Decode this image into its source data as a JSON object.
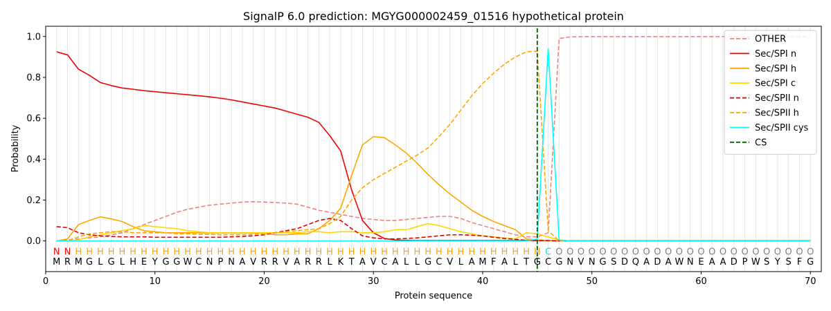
{
  "chart_data": {
    "type": "line",
    "title": "SignalP 6.0 prediction: MGYG000002459_01516 hypothetical protein",
    "xlabel": "Protein sequence",
    "ylabel": "Probability",
    "xlim": [
      0,
      71
    ],
    "ylim": [
      -0.15,
      1.05
    ],
    "xticks": [
      0,
      10,
      20,
      30,
      40,
      50,
      60,
      70
    ],
    "yticks": [
      0.0,
      0.2,
      0.4,
      0.6,
      0.8,
      1.0
    ],
    "ytick_labels": [
      "0.0",
      "0.2",
      "0.4",
      "0.6",
      "0.8",
      "1.0"
    ],
    "grid": "vertical lines at each residue",
    "legend_position": "top-right",
    "sequence": [
      "M",
      "R",
      "M",
      "G",
      "L",
      "G",
      "L",
      "H",
      "E",
      "Y",
      "G",
      "G",
      "W",
      "C",
      "N",
      "P",
      "N",
      "A",
      "V",
      "R",
      "R",
      "V",
      "A",
      "R",
      "R",
      "L",
      "K",
      "T",
      "A",
      "V",
      "C",
      "A",
      "L",
      "L",
      "G",
      "C",
      "V",
      "L",
      "A",
      "M",
      "F",
      "A",
      "L",
      "T",
      "G",
      "C",
      "G",
      "N",
      "V",
      "N",
      "G",
      "S",
      "D",
      "Q",
      "A",
      "D",
      "A",
      "W",
      "N",
      "E",
      "A",
      "A",
      "D",
      "P",
      "W",
      "S",
      "Y",
      "S",
      "F",
      "G"
    ],
    "annotations": [
      "N",
      "N",
      "H",
      "H",
      "H",
      "H",
      "H",
      "H",
      "H",
      "H",
      "H",
      "H",
      "H",
      "H",
      "H",
      "H",
      "H",
      "H",
      "H",
      "H",
      "H",
      "H",
      "H",
      "H",
      "H",
      "H",
      "H",
      "H",
      "H",
      "H",
      "H",
      "H",
      "H",
      "H",
      "H",
      "H",
      "H",
      "H",
      "H",
      "H",
      "H",
      "H",
      "H",
      "H",
      "H",
      "C",
      "O",
      "O",
      "O",
      "O",
      "O",
      "O",
      "O",
      "O",
      "O",
      "O",
      "O",
      "O",
      "O",
      "O",
      "O",
      "O",
      "O",
      "O",
      "O",
      "O",
      "O",
      "O",
      "O",
      "O"
    ],
    "annotation_colors": {
      "N": "#ff0000",
      "H": "#ffa500",
      "C": "#00e5e5",
      "O": "#808080"
    },
    "cs_position": 45,
    "series": [
      {
        "name": "OTHER",
        "color": "#f08080",
        "dash": "dashed",
        "values": [
          0.0,
          0.005,
          0.01,
          0.015,
          0.02,
          0.03,
          0.04,
          0.06,
          0.08,
          0.1,
          0.12,
          0.14,
          0.155,
          0.165,
          0.175,
          0.18,
          0.185,
          0.19,
          0.192,
          0.19,
          0.188,
          0.185,
          0.18,
          0.165,
          0.15,
          0.14,
          0.13,
          0.12,
          0.11,
          0.105,
          0.1,
          0.1,
          0.105,
          0.11,
          0.115,
          0.12,
          0.12,
          0.11,
          0.09,
          0.075,
          0.06,
          0.045,
          0.03,
          0.02,
          0.02,
          0.04,
          0.99,
          0.998,
          0.999,
          0.999,
          0.999,
          0.999,
          0.999,
          0.999,
          0.999,
          0.999,
          0.999,
          0.999,
          0.999,
          0.999,
          0.999,
          0.999,
          0.999,
          0.999,
          0.999,
          0.999,
          0.999,
          0.999,
          0.999,
          0.999
        ]
      },
      {
        "name": "Sec/SPI n",
        "color": "#ee0000",
        "dash": "solid",
        "values": [
          0.925,
          0.91,
          0.84,
          0.81,
          0.775,
          0.76,
          0.748,
          0.742,
          0.735,
          0.73,
          0.725,
          0.72,
          0.715,
          0.71,
          0.705,
          0.698,
          0.69,
          0.68,
          0.67,
          0.66,
          0.65,
          0.635,
          0.62,
          0.605,
          0.58,
          0.515,
          0.44,
          0.25,
          0.1,
          0.04,
          0.012,
          0.005,
          0.003,
          0.002,
          0.002,
          0.002,
          0.002,
          0.002,
          0.002,
          0.002,
          0.002,
          0.002,
          0.002,
          0.002,
          0.002,
          0.002,
          0.001,
          0.001,
          0.001,
          0.001,
          0.001,
          0.001,
          0.001,
          0.001,
          0.001,
          0.001,
          0.001,
          0.001,
          0.001,
          0.001,
          0.001,
          0.001,
          0.001,
          0.001,
          0.001,
          0.001,
          0.001,
          0.001,
          0.001,
          0.001
        ]
      },
      {
        "name": "Sec/SPI h",
        "color": "#ffa500",
        "dash": "solid",
        "values": [
          0.0,
          0.01,
          0.08,
          0.1,
          0.118,
          0.108,
          0.095,
          0.07,
          0.05,
          0.045,
          0.04,
          0.04,
          0.04,
          0.04,
          0.038,
          0.038,
          0.038,
          0.038,
          0.038,
          0.038,
          0.03,
          0.03,
          0.035,
          0.035,
          0.06,
          0.1,
          0.16,
          0.32,
          0.47,
          0.51,
          0.505,
          0.47,
          0.43,
          0.38,
          0.325,
          0.275,
          0.23,
          0.19,
          0.15,
          0.12,
          0.095,
          0.075,
          0.055,
          0.01,
          0.005,
          0.003,
          0.0,
          0.0,
          0.0,
          0.0,
          0.0,
          0.0,
          0.0,
          0.0,
          0.0,
          0.0,
          0.0,
          0.0,
          0.0,
          0.0,
          0.0,
          0.0,
          0.0,
          0.0,
          0.0,
          0.0,
          0.0,
          0.0,
          0.0,
          0.0
        ]
      },
      {
        "name": "Sec/SPI c",
        "color": "#ffd700",
        "dash": "solid",
        "values": [
          0.0,
          0.0,
          0.005,
          0.02,
          0.03,
          0.04,
          0.05,
          0.06,
          0.075,
          0.07,
          0.065,
          0.06,
          0.05,
          0.045,
          0.04,
          0.04,
          0.04,
          0.04,
          0.04,
          0.04,
          0.04,
          0.04,
          0.04,
          0.045,
          0.045,
          0.04,
          0.045,
          0.045,
          0.04,
          0.04,
          0.045,
          0.055,
          0.055,
          0.07,
          0.085,
          0.075,
          0.06,
          0.045,
          0.035,
          0.025,
          0.02,
          0.015,
          0.01,
          0.04,
          0.035,
          0.02,
          0.005,
          0.0,
          0.0,
          0.0,
          0.0,
          0.0,
          0.0,
          0.0,
          0.0,
          0.0,
          0.0,
          0.0,
          0.0,
          0.0,
          0.0,
          0.0,
          0.0,
          0.0,
          0.0,
          0.0,
          0.0,
          0.0,
          0.0,
          0.0
        ]
      },
      {
        "name": "Sec/SPII n",
        "color": "#dd0000",
        "dash": "dashed",
        "values": [
          0.07,
          0.065,
          0.04,
          0.03,
          0.025,
          0.022,
          0.02,
          0.02,
          0.02,
          0.018,
          0.018,
          0.018,
          0.018,
          0.018,
          0.018,
          0.018,
          0.02,
          0.022,
          0.025,
          0.03,
          0.04,
          0.05,
          0.06,
          0.08,
          0.1,
          0.11,
          0.1,
          0.06,
          0.025,
          0.015,
          0.01,
          0.01,
          0.012,
          0.015,
          0.02,
          0.025,
          0.03,
          0.03,
          0.028,
          0.025,
          0.018,
          0.012,
          0.008,
          0.003,
          0.002,
          0.001,
          0.0,
          0.0,
          0.0,
          0.0,
          0.0,
          0.0,
          0.0,
          0.0,
          0.0,
          0.0,
          0.0,
          0.0,
          0.0,
          0.0,
          0.0,
          0.0,
          0.0,
          0.0,
          0.0,
          0.0,
          0.0,
          0.0,
          0.0,
          0.0
        ]
      },
      {
        "name": "Sec/SPII h",
        "color": "#ffa500",
        "dash": "dashed",
        "values": [
          0.0,
          0.0,
          0.02,
          0.035,
          0.04,
          0.045,
          0.045,
          0.04,
          0.04,
          0.04,
          0.04,
          0.035,
          0.035,
          0.032,
          0.032,
          0.03,
          0.03,
          0.03,
          0.032,
          0.035,
          0.04,
          0.045,
          0.05,
          0.055,
          0.06,
          0.085,
          0.12,
          0.2,
          0.26,
          0.3,
          0.33,
          0.36,
          0.39,
          0.42,
          0.455,
          0.51,
          0.57,
          0.64,
          0.71,
          0.77,
          0.82,
          0.865,
          0.9,
          0.925,
          0.928,
          0.05,
          0.0,
          0.0,
          0.0,
          0.0,
          0.0,
          0.0,
          0.0,
          0.0,
          0.0,
          0.0,
          0.0,
          0.0,
          0.0,
          0.0,
          0.0,
          0.0,
          0.0,
          0.0,
          0.0,
          0.0,
          0.0,
          0.0,
          0.0,
          0.0
        ]
      },
      {
        "name": "Sec/SPII cys",
        "color": "#00ffff",
        "dash": "solid",
        "values": [
          0.0,
          0.0,
          0.0,
          0.0,
          0.0,
          0.0,
          0.0,
          0.0,
          0.0,
          0.0,
          0.0,
          0.0,
          0.0,
          0.0,
          0.0,
          0.0,
          0.0,
          0.0,
          0.0,
          0.0,
          0.0,
          0.0,
          0.0,
          0.0,
          0.0,
          0.0,
          0.0,
          0.0,
          0.0,
          0.0,
          0.0,
          0.0,
          0.0,
          0.0,
          0.0,
          0.0,
          0.0,
          0.0,
          0.0,
          0.0,
          0.0,
          0.0,
          0.0,
          0.0,
          0.01,
          0.94,
          0.005,
          0.0,
          0.0,
          0.0,
          0.0,
          0.0,
          0.0,
          0.0,
          0.0,
          0.0,
          0.0,
          0.0,
          0.0,
          0.0,
          0.0,
          0.0,
          0.0,
          0.0,
          0.0,
          0.0,
          0.0,
          0.0,
          0.0,
          0.0
        ]
      }
    ],
    "legend": [
      {
        "name": "OTHER",
        "color": "#f08080",
        "dash": "dashed"
      },
      {
        "name": "Sec/SPI n",
        "color": "#ee0000",
        "dash": "solid"
      },
      {
        "name": "Sec/SPI h",
        "color": "#ffa500",
        "dash": "solid"
      },
      {
        "name": "Sec/SPI c",
        "color": "#ffd700",
        "dash": "solid"
      },
      {
        "name": "Sec/SPII n",
        "color": "#dd0000",
        "dash": "dashed"
      },
      {
        "name": "Sec/SPII h",
        "color": "#ffa500",
        "dash": "dashed"
      },
      {
        "name": "Sec/SPII cys",
        "color": "#00ffff",
        "dash": "solid"
      },
      {
        "name": "CS",
        "color": "#006400",
        "dash": "dashed"
      }
    ]
  }
}
